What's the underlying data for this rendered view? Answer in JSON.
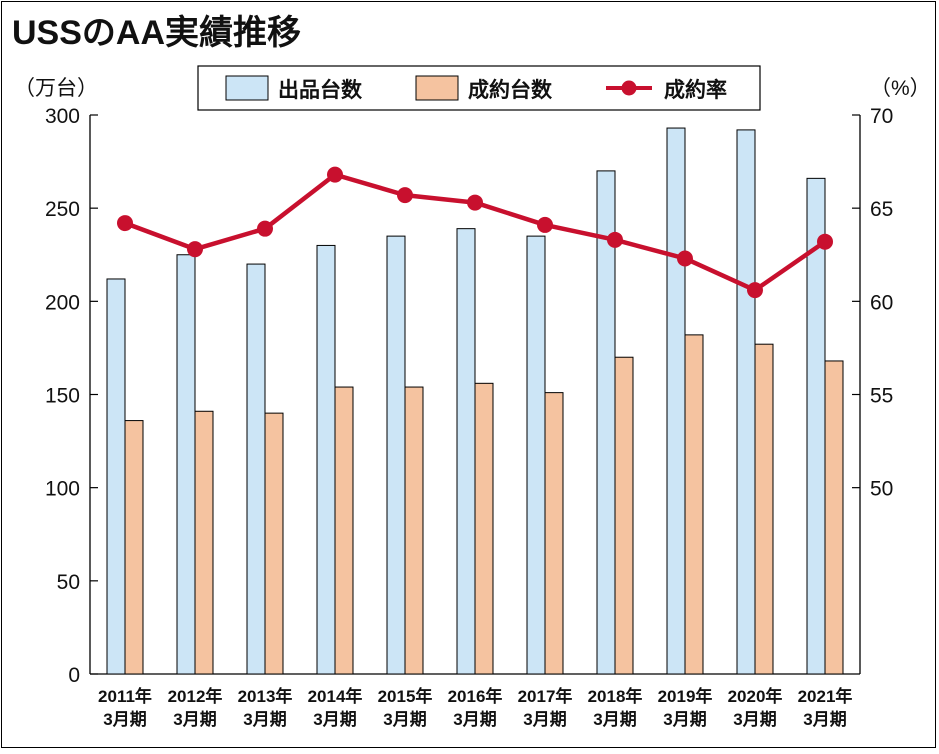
{
  "chart_data": {
    "type": "bar",
    "title": "USSのAA実績推移",
    "y_left_unit": "（万台）",
    "y_right_unit": "（%）",
    "y_left_range": [
      0,
      300
    ],
    "y_left_ticks": [
      0,
      50,
      100,
      150,
      200,
      250,
      300
    ],
    "y_right_range": [
      40,
      70
    ],
    "y_right_ticks": [
      "50",
      "55",
      "60",
      "65",
      "70"
    ],
    "legend_position": "top",
    "grid": false,
    "categories": [
      [
        "2011年",
        "3月期"
      ],
      [
        "2012年",
        "3月期"
      ],
      [
        "2013年",
        "3月期"
      ],
      [
        "2014年",
        "3月期"
      ],
      [
        "2015年",
        "3月期"
      ],
      [
        "2016年",
        "3月期"
      ],
      [
        "2017年",
        "3月期"
      ],
      [
        "2018年",
        "3月期"
      ],
      [
        "2019年",
        "3月期"
      ],
      [
        "2020年",
        "3月期"
      ],
      [
        "2021年",
        "3月期"
      ]
    ],
    "series": [
      {
        "name": "出品台数",
        "kind": "bar",
        "axis": "left",
        "color": "#cce5f6",
        "values": [
          212,
          225,
          220,
          230,
          235,
          239,
          235,
          270,
          293,
          292,
          266
        ]
      },
      {
        "name": "成約台数",
        "kind": "bar",
        "axis": "left",
        "color": "#f5c3a0",
        "values": [
          136,
          141,
          140,
          154,
          154,
          156,
          151,
          170,
          182,
          177,
          168
        ]
      },
      {
        "name": "成約率",
        "kind": "line",
        "axis": "right",
        "color": "#c8102e",
        "values": [
          64.2,
          62.8,
          63.9,
          66.8,
          65.7,
          65.3,
          64.1,
          63.3,
          62.3,
          60.6,
          63.2
        ]
      }
    ]
  }
}
